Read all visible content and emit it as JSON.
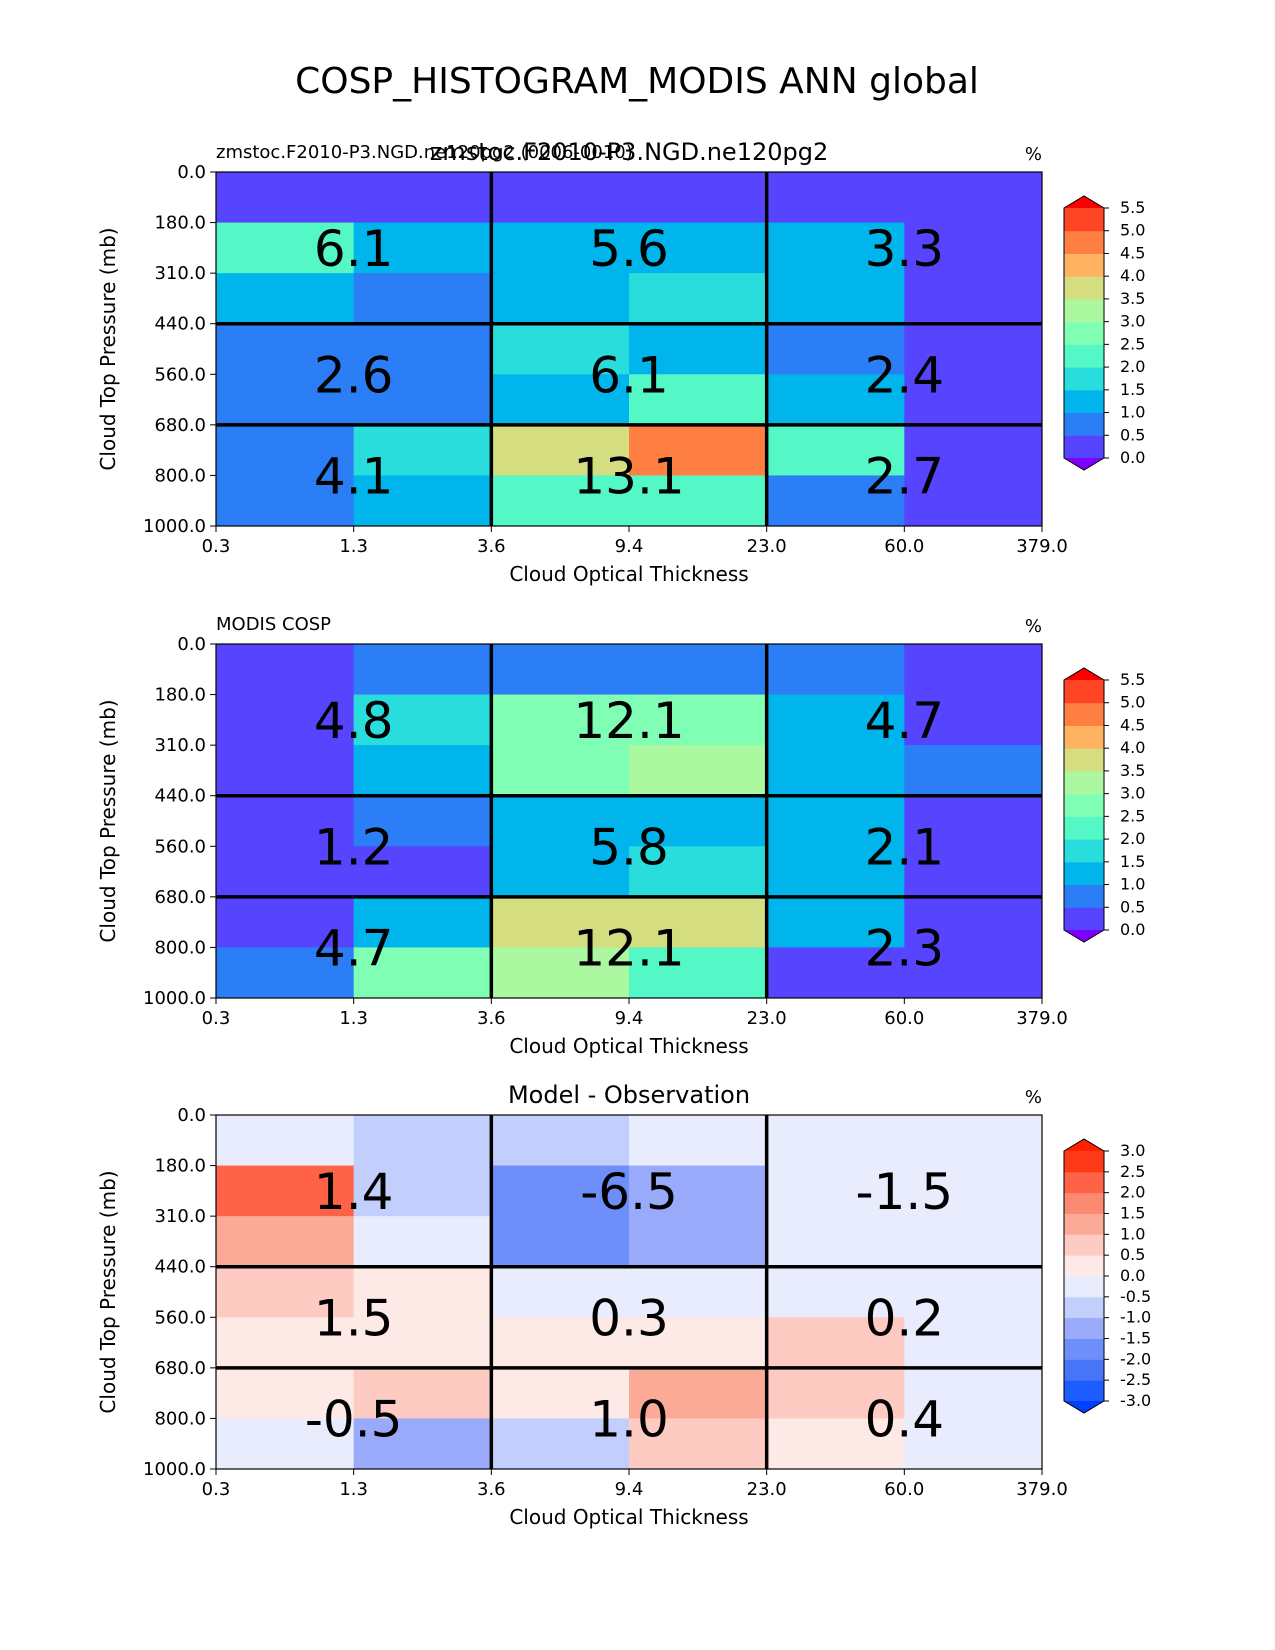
{
  "figure": {
    "suptitle": "COSP_HISTOGRAM_MODIS ANN global"
  },
  "chart_data": [
    {
      "type": "heatmap",
      "id": "test",
      "title_left": "zmstoc.F2010-P3.NGD.ne120pg2 (0006-0010)",
      "title_center": "zmstoc.F2010-P3.NGD.ne120pg2",
      "units": "%",
      "xlabel": "Cloud Optical Thickness",
      "ylabel": "Cloud Top Pressure (mb)",
      "x_ticks": [
        "0.3",
        "1.3",
        "3.6",
        "9.4",
        "23.0",
        "60.0",
        "379.0"
      ],
      "y_ticks": [
        "0.0",
        "180.0",
        "310.0",
        "440.0",
        "560.0",
        "680.0",
        "800.0",
        "1000.0"
      ],
      "values": [
        [
          0.1,
          0.1,
          0.1,
          0.1,
          0.1,
          0.1
        ],
        [
          2.1,
          1.4,
          1.3,
          1.2,
          1.2,
          0.2
        ],
        [
          1.4,
          0.8,
          1.3,
          1.9,
          1.4,
          0.1
        ],
        [
          0.9,
          0.9,
          1.5,
          1.3,
          0.7,
          0.2
        ],
        [
          0.8,
          0.9,
          1.4,
          2.3,
          1.2,
          0.2
        ],
        [
          0.7,
          1.7,
          3.7,
          4.9,
          2.3,
          0.2
        ],
        [
          0.7,
          1.2,
          2.4,
          2.4,
          0.9,
          0.2
        ]
      ],
      "cell_labels": [
        [
          "6.1",
          "5.6",
          "3.3"
        ],
        [
          "2.6",
          "6.1",
          "2.4"
        ],
        [
          "4.1",
          "13.1",
          "2.7"
        ]
      ],
      "colorbar": {
        "levels": [
          0.0,
          0.5,
          1.0,
          1.5,
          2.0,
          2.5,
          3.0,
          3.5,
          4.0,
          4.5,
          5.0,
          5.5
        ],
        "tick_labels": [
          "0.0",
          "0.5",
          "1.0",
          "1.5",
          "2.0",
          "2.5",
          "3.0",
          "3.5",
          "4.0",
          "4.5",
          "5.0",
          "5.5"
        ],
        "colors": [
          "#8000ff",
          "#5644ff",
          "#2c7ef7",
          "#00b5eb",
          "#2adddd",
          "#54f8c6",
          "#80ffb4",
          "#acf8a0",
          "#d4dd80",
          "#ffb360",
          "#ff7e41",
          "#ff4424",
          "#ff0000"
        ]
      }
    },
    {
      "type": "heatmap",
      "id": "ref",
      "title_left": "MODIS COSP",
      "title_center": "",
      "units": "%",
      "xlabel": "Cloud Optical Thickness",
      "ylabel": "Cloud Top Pressure (mb)",
      "x_ticks": [
        "0.3",
        "1.3",
        "3.6",
        "9.4",
        "23.0",
        "60.0",
        "379.0"
      ],
      "y_ticks": [
        "0.0",
        "180.0",
        "310.0",
        "440.0",
        "560.0",
        "680.0",
        "800.0",
        "1000.0"
      ],
      "values": [
        [
          0.2,
          0.8,
          0.8,
          0.8,
          0.7,
          0.3
        ],
        [
          0.2,
          1.8,
          2.8,
          2.8,
          1.3,
          0.3
        ],
        [
          0.2,
          1.3,
          2.8,
          3.0,
          1.4,
          0.9
        ],
        [
          0.3,
          0.8,
          1.4,
          1.3,
          1.3,
          0.3
        ],
        [
          0.3,
          0.3,
          1.4,
          1.9,
          1.3,
          0.3
        ],
        [
          0.3,
          1.3,
          3.7,
          3.8,
          1.4,
          0.3
        ],
        [
          0.9,
          2.8,
          3.2,
          2.0,
          0.4,
          0.3
        ]
      ],
      "cell_labels": [
        [
          "4.8",
          "12.1",
          "4.7"
        ],
        [
          "1.2",
          "5.8",
          "2.1"
        ],
        [
          "4.7",
          "12.1",
          "2.3"
        ]
      ],
      "colorbar": {
        "levels": [
          0.0,
          0.5,
          1.0,
          1.5,
          2.0,
          2.5,
          3.0,
          3.5,
          4.0,
          4.5,
          5.0,
          5.5
        ],
        "tick_labels": [
          "0.0",
          "0.5",
          "1.0",
          "1.5",
          "2.0",
          "2.5",
          "3.0",
          "3.5",
          "4.0",
          "4.5",
          "5.0",
          "5.5"
        ],
        "colors": [
          "#8000ff",
          "#5644ff",
          "#2c7ef7",
          "#00b5eb",
          "#2adddd",
          "#54f8c6",
          "#80ffb4",
          "#acf8a0",
          "#d4dd80",
          "#ffb360",
          "#ff7e41",
          "#ff4424",
          "#ff0000"
        ]
      }
    },
    {
      "type": "heatmap",
      "id": "diff",
      "title_left": "",
      "title_center": "Model - Observation",
      "units": "%",
      "xlabel": "Cloud Optical Thickness",
      "ylabel": "Cloud Top Pressure (mb)",
      "x_ticks": [
        "0.3",
        "1.3",
        "3.6",
        "9.4",
        "23.0",
        "60.0",
        "379.0"
      ],
      "y_ticks": [
        "0.0",
        "180.0",
        "310.0",
        "440.0",
        "560.0",
        "680.0",
        "800.0",
        "1000.0"
      ],
      "values": [
        [
          -0.2,
          -0.7,
          -0.7,
          -0.2,
          -0.2,
          -0.2
        ],
        [
          2.0,
          -0.7,
          -1.8,
          -1.3,
          -0.2,
          -0.2
        ],
        [
          1.2,
          -0.2,
          -1.8,
          -1.3,
          -0.2,
          -0.2
        ],
        [
          0.7,
          0.2,
          -0.2,
          -0.2,
          -0.2,
          -0.2
        ],
        [
          0.2,
          0.2,
          0.2,
          0.2,
          0.8,
          -0.2
        ],
        [
          0.2,
          0.7,
          0.2,
          1.3,
          0.7,
          -0.2
        ],
        [
          -0.2,
          -1.3,
          -0.7,
          0.7,
          0.2,
          -0.2
        ]
      ],
      "cell_labels": [
        [
          "1.4",
          "-6.5",
          "-1.5"
        ],
        [
          "1.5",
          "0.3",
          "0.2"
        ],
        [
          "-0.5",
          "1.0",
          "0.4"
        ]
      ],
      "colorbar": {
        "levels": [
          -3.0,
          -2.5,
          -2.0,
          -1.5,
          -1.0,
          -0.5,
          0.0,
          0.5,
          1.0,
          1.5,
          2.0,
          2.5,
          3.0
        ],
        "tick_labels": [
          "-3.0",
          "-2.5",
          "-2.0",
          "-1.5",
          "-1.0",
          "-0.5",
          "0.0",
          "0.5",
          "1.0",
          "1.5",
          "2.0",
          "2.5",
          "3.0"
        ],
        "colors": [
          "#0040ff",
          "#1d5cff",
          "#4875f7",
          "#6e8ff9",
          "#98aaf9",
          "#c2cffc",
          "#e8ecfc",
          "#fde9e6",
          "#fdcbc1",
          "#fcaa98",
          "#fb8a70",
          "#fe6347",
          "#ff3a19",
          "#ff2000"
        ]
      }
    }
  ]
}
